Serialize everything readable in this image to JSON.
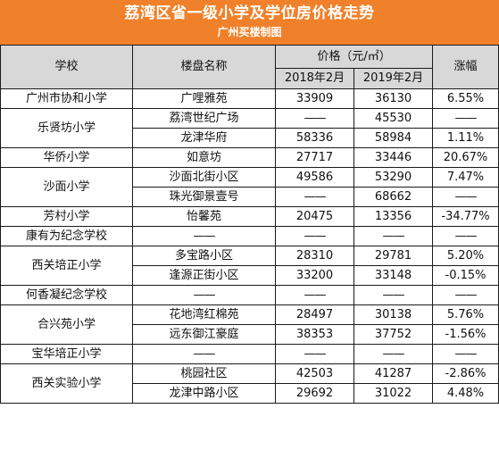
{
  "title": "荔湾区省一级小学及学位房价格走势",
  "subtitle": "广州买楼制图",
  "headers": {
    "school": "学校",
    "estate": "楼盘名称",
    "price": "价格（元/㎡）",
    "y2018": "2018年2月",
    "y2019": "2019年2月",
    "change": "涨幅"
  },
  "dash": "——",
  "groups": [
    {
      "school": "广州市协和小学",
      "rows": [
        {
          "estate": "广哩雅苑",
          "p2018": "33909",
          "p2019": "36130",
          "change": "6.55%"
        }
      ]
    },
    {
      "school": "乐贤坊小学",
      "rows": [
        {
          "estate": "荔湾世纪广场",
          "p2018": "——",
          "p2019": "45530",
          "change": "——"
        },
        {
          "estate": "龙津华府",
          "p2018": "58336",
          "p2019": "58984",
          "change": "1.11%"
        }
      ]
    },
    {
      "school": "华侨小学",
      "rows": [
        {
          "estate": "如意坊",
          "p2018": "27717",
          "p2019": "33446",
          "change": "20.67%"
        }
      ]
    },
    {
      "school": "沙面小学",
      "rows": [
        {
          "estate": "沙面北街小区",
          "p2018": "49586",
          "p2019": "53290",
          "change": "7.47%"
        },
        {
          "estate": "珠光御景壹号",
          "p2018": "——",
          "p2019": "68662",
          "change": "——"
        }
      ]
    },
    {
      "school": "芳村小学",
      "rows": [
        {
          "estate": "怡馨苑",
          "p2018": "20475",
          "p2019": "13356",
          "change": "-34.77%"
        }
      ]
    },
    {
      "school": "康有为纪念学校",
      "rows": [
        {
          "estate": "——",
          "p2018": "——",
          "p2019": "——",
          "change": "——"
        }
      ]
    },
    {
      "school": "西关培正小学",
      "rows": [
        {
          "estate": "多宝路小区",
          "p2018": "28310",
          "p2019": "29781",
          "change": "5.20%"
        },
        {
          "estate": "逢源正街小区",
          "p2018": "33200",
          "p2019": "33148",
          "change": "-0.15%"
        }
      ]
    },
    {
      "school": "何香凝纪念学校",
      "rows": [
        {
          "estate": "——",
          "p2018": "——",
          "p2019": "——",
          "change": "——"
        }
      ]
    },
    {
      "school": "合兴苑小学",
      "rows": [
        {
          "estate": "花地湾红棉苑",
          "p2018": "28497",
          "p2019": "30138",
          "change": "5.76%"
        },
        {
          "estate": "远东御江豪庭",
          "p2018": "38353",
          "p2019": "37752",
          "change": "-1.56%"
        }
      ]
    },
    {
      "school": "宝华培正小学",
      "rows": [
        {
          "estate": "——",
          "p2018": "——",
          "p2019": "——",
          "change": "——"
        }
      ]
    },
    {
      "school": "西关实验小学",
      "rows": [
        {
          "estate": "桃园社区",
          "p2018": "42503",
          "p2019": "41287",
          "change": "-2.86%"
        },
        {
          "estate": "龙津中路小区",
          "p2018": "29692",
          "p2019": "31022",
          "change": "4.48%"
        }
      ]
    }
  ]
}
